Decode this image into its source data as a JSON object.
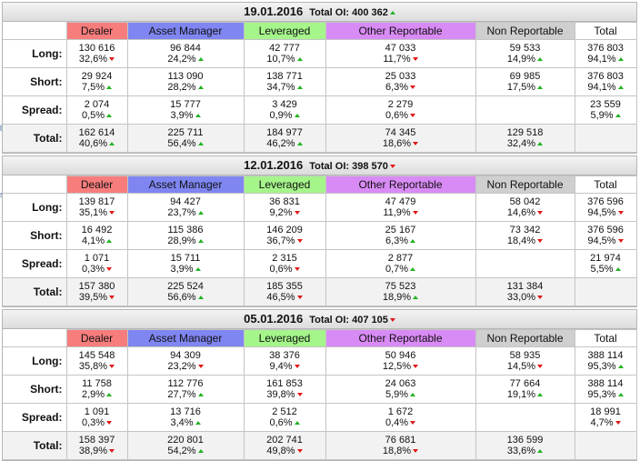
{
  "edge_fragments": [
    "le",
    "s"
  ],
  "columns": [
    "Dealer",
    "Asset Manager",
    "Leveraged",
    "Other Reportable",
    "Non Reportable",
    "Total"
  ],
  "blocks": [
    {
      "date": "19.01.2016",
      "total_oi": "Total OI: 400 362",
      "total_oi_trend": "up",
      "rows": [
        {
          "label": "Long:",
          "cells": [
            {
              "v": "130 616",
              "p": "32,6%",
              "t": "down"
            },
            {
              "v": "96 844",
              "p": "24,2%",
              "t": "up"
            },
            {
              "v": "42 777",
              "p": "10,7%",
              "t": "up"
            },
            {
              "v": "47 033",
              "p": "11,7%",
              "t": "down"
            },
            {
              "v": "59 533",
              "p": "14,9%",
              "t": "up"
            },
            {
              "v": "376 803",
              "p": "94,1%",
              "t": "up"
            }
          ]
        },
        {
          "label": "Short:",
          "cells": [
            {
              "v": "29 924",
              "p": "7,5%",
              "t": "up"
            },
            {
              "v": "113 090",
              "p": "28,2%",
              "t": "up"
            },
            {
              "v": "138 771",
              "p": "34,7%",
              "t": "up"
            },
            {
              "v": "25 033",
              "p": "6,3%",
              "t": "down"
            },
            {
              "v": "69 985",
              "p": "17,5%",
              "t": "up"
            },
            {
              "v": "376 803",
              "p": "94,1%",
              "t": "up"
            }
          ]
        },
        {
          "label": "Spread:",
          "cells": [
            {
              "v": "2 074",
              "p": "0,5%",
              "t": "up"
            },
            {
              "v": "15 777",
              "p": "3,9%",
              "t": "up"
            },
            {
              "v": "3 429",
              "p": "0,9%",
              "t": "up"
            },
            {
              "v": "2 279",
              "p": "0,6%",
              "t": "down"
            },
            {
              "v": "",
              "p": "",
              "t": ""
            },
            {
              "v": "23 559",
              "p": "5,9%",
              "t": "up"
            }
          ]
        },
        {
          "label": "Total:",
          "cells": [
            {
              "v": "162 614",
              "p": "40,6%",
              "t": "up"
            },
            {
              "v": "225 711",
              "p": "56,4%",
              "t": "up"
            },
            {
              "v": "184 977",
              "p": "46,2%",
              "t": "up"
            },
            {
              "v": "74 345",
              "p": "18,6%",
              "t": "down"
            },
            {
              "v": "129 518",
              "p": "32,4%",
              "t": "up"
            },
            {
              "v": "",
              "p": "",
              "t": ""
            }
          ]
        }
      ]
    },
    {
      "date": "12.01.2016",
      "total_oi": "Total OI: 398 570",
      "total_oi_trend": "down",
      "rows": [
        {
          "label": "Long:",
          "cells": [
            {
              "v": "139 817",
              "p": "35,1%",
              "t": "down"
            },
            {
              "v": "94 427",
              "p": "23,7%",
              "t": "up"
            },
            {
              "v": "36 831",
              "p": "9,2%",
              "t": "down"
            },
            {
              "v": "47 479",
              "p": "11,9%",
              "t": "down"
            },
            {
              "v": "58 042",
              "p": "14,6%",
              "t": "down"
            },
            {
              "v": "376 596",
              "p": "94,5%",
              "t": "down"
            }
          ]
        },
        {
          "label": "Short:",
          "cells": [
            {
              "v": "16 492",
              "p": "4,1%",
              "t": "up"
            },
            {
              "v": "115 386",
              "p": "28,9%",
              "t": "up"
            },
            {
              "v": "146 209",
              "p": "36,7%",
              "t": "down"
            },
            {
              "v": "25 167",
              "p": "6,3%",
              "t": "up"
            },
            {
              "v": "73 342",
              "p": "18,4%",
              "t": "down"
            },
            {
              "v": "376 596",
              "p": "94,5%",
              "t": "down"
            }
          ]
        },
        {
          "label": "Spread:",
          "cells": [
            {
              "v": "1 071",
              "p": "0,3%",
              "t": "down"
            },
            {
              "v": "15 711",
              "p": "3,9%",
              "t": "up"
            },
            {
              "v": "2 315",
              "p": "0,6%",
              "t": "down"
            },
            {
              "v": "2 877",
              "p": "0,7%",
              "t": "up"
            },
            {
              "v": "",
              "p": "",
              "t": ""
            },
            {
              "v": "21 974",
              "p": "5,5%",
              "t": "up"
            }
          ]
        },
        {
          "label": "Total:",
          "cells": [
            {
              "v": "157 380",
              "p": "39,5%",
              "t": "down"
            },
            {
              "v": "225 524",
              "p": "56,6%",
              "t": "up"
            },
            {
              "v": "185 355",
              "p": "46,5%",
              "t": "down"
            },
            {
              "v": "75 523",
              "p": "18,9%",
              "t": "up"
            },
            {
              "v": "131 384",
              "p": "33,0%",
              "t": "down"
            },
            {
              "v": "",
              "p": "",
              "t": ""
            }
          ]
        }
      ]
    },
    {
      "date": "05.01.2016",
      "total_oi": "Total OI: 407 105",
      "total_oi_trend": "down",
      "rows": [
        {
          "label": "Long:",
          "cells": [
            {
              "v": "145 548",
              "p": "35,8%",
              "t": "down"
            },
            {
              "v": "94 309",
              "p": "23,2%",
              "t": "down"
            },
            {
              "v": "38 376",
              "p": "9,4%",
              "t": "down"
            },
            {
              "v": "50 946",
              "p": "12,5%",
              "t": "down"
            },
            {
              "v": "58 935",
              "p": "14,5%",
              "t": "down"
            },
            {
              "v": "388 114",
              "p": "95,3%",
              "t": "up"
            }
          ]
        },
        {
          "label": "Short:",
          "cells": [
            {
              "v": "11 758",
              "p": "2,9%",
              "t": "up"
            },
            {
              "v": "112 776",
              "p": "27,7%",
              "t": "up"
            },
            {
              "v": "161 853",
              "p": "39,8%",
              "t": "down"
            },
            {
              "v": "24 063",
              "p": "5,9%",
              "t": "up"
            },
            {
              "v": "77 664",
              "p": "19,1%",
              "t": "up"
            },
            {
              "v": "388 114",
              "p": "95,3%",
              "t": "up"
            }
          ]
        },
        {
          "label": "Spread:",
          "cells": [
            {
              "v": "1 091",
              "p": "0,3%",
              "t": "down"
            },
            {
              "v": "13 716",
              "p": "3,4%",
              "t": "up"
            },
            {
              "v": "2 512",
              "p": "0,6%",
              "t": "up"
            },
            {
              "v": "1 672",
              "p": "0,4%",
              "t": "down"
            },
            {
              "v": "",
              "p": "",
              "t": ""
            },
            {
              "v": "18 991",
              "p": "4,7%",
              "t": "down"
            }
          ]
        },
        {
          "label": "Total:",
          "cells": [
            {
              "v": "158 397",
              "p": "38,9%",
              "t": "down"
            },
            {
              "v": "220 801",
              "p": "54,2%",
              "t": "up"
            },
            {
              "v": "202 741",
              "p": "49,8%",
              "t": "down"
            },
            {
              "v": "76 681",
              "p": "18,8%",
              "t": "down"
            },
            {
              "v": "136 599",
              "p": "33,6%",
              "t": "up"
            },
            {
              "v": "",
              "p": "",
              "t": ""
            }
          ]
        }
      ]
    }
  ]
}
